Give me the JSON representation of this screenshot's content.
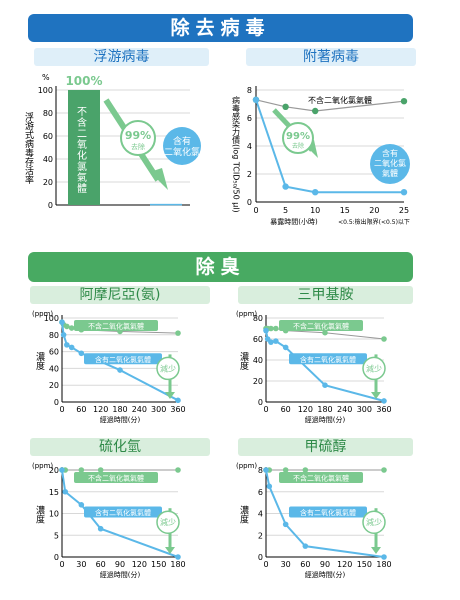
{
  "section1": {
    "title": "除去病毒"
  },
  "section2": {
    "title": "除臭"
  },
  "palette": {
    "blue": "#5bb8e8",
    "green": "#4aa36a",
    "gray": "#999999",
    "light_green": "#7bc98f",
    "header_blue": "#1f73c0"
  },
  "chart_data": [
    {
      "type": "bar",
      "subtitle": "浮游病毒",
      "ylabel": "浮游式病毒存活率",
      "unit": "%",
      "ylim": [
        0,
        100
      ],
      "yticks": [
        "0",
        "20",
        "40",
        "60",
        "80",
        "100"
      ],
      "categories": [
        "不含二氧化氯氣體",
        "含有二氧化氯"
      ],
      "values": [
        100,
        1
      ],
      "labels": {
        "top": "100%",
        "reduction": "99%",
        "reduction_sub": "去除",
        "bar1": "不含二氧化氯氣體",
        "bar2": "含有二氧化氯"
      }
    },
    {
      "type": "line",
      "subtitle": "附著病毒",
      "ylabel": "病毒感染力價(log TCID₅₀/50 μl)",
      "xlabel": "暴露時間(小時)",
      "note": "<0.5:檢出限界(<0.5)以下",
      "x": [
        0,
        5,
        10,
        25
      ],
      "xticks": [
        "0",
        "5",
        "10",
        "15",
        "20",
        "25"
      ],
      "yticks": [
        "0",
        "2",
        "4",
        "6",
        "8"
      ],
      "ylim": [
        0,
        8
      ],
      "xlim": [
        0,
        25
      ],
      "series": [
        {
          "name": "不含二氧化氯氣體",
          "values": [
            7.3,
            6.8,
            6.5,
            7.2
          ]
        },
        {
          "name": "含有二氧化氯氣體",
          "values": [
            7.3,
            1.1,
            0.7,
            0.7
          ]
        }
      ],
      "labels": {
        "reduction": "99%",
        "reduction_sub": "去除"
      }
    },
    {
      "type": "line",
      "subtitle": "阿摩尼亞(氨)",
      "ylabel": "濃度",
      "unit": "(ppm)",
      "xlabel": "經過時間(分)",
      "x": [
        0,
        5,
        15,
        30,
        60,
        180,
        360
      ],
      "xticks": [
        "0",
        "60",
        "120",
        "180",
        "240",
        "300",
        "360"
      ],
      "yticks": [
        "0",
        "20",
        "40",
        "60",
        "80",
        "100"
      ],
      "ylim": [
        0,
        100
      ],
      "xlim": [
        0,
        360
      ],
      "series": [
        {
          "name": "不含二氧化氯氣體",
          "values": [
            95,
            92,
            90,
            88,
            86,
            84,
            82
          ]
        },
        {
          "name": "含有二氧化氯氣體",
          "values": [
            95,
            80,
            68,
            65,
            58,
            38,
            2
          ]
        }
      ],
      "labels": {
        "reduction": "減少"
      }
    },
    {
      "type": "line",
      "subtitle": "三甲基胺",
      "ylabel": "濃度",
      "unit": "(ppm)",
      "xlabel": "經過時間(分)",
      "x": [
        0,
        5,
        15,
        30,
        60,
        180,
        360
      ],
      "xticks": [
        "0",
        "60",
        "120",
        "180",
        "240",
        "300",
        "360"
      ],
      "yticks": [
        "0",
        "20",
        "40",
        "60",
        "80"
      ],
      "ylim": [
        0,
        80
      ],
      "xlim": [
        0,
        360
      ],
      "series": [
        {
          "name": "不含二氧化氯氣體",
          "values": [
            70,
            70,
            70,
            70,
            68,
            66,
            60
          ]
        },
        {
          "name": "含有二氧化氯氣體",
          "values": [
            68,
            60,
            57,
            58,
            52,
            16,
            1
          ]
        }
      ],
      "labels": {
        "reduction": "減少"
      }
    },
    {
      "type": "line",
      "subtitle": "硫化氫",
      "ylabel": "濃度",
      "unit": "(ppm)",
      "xlabel": "經過時間(分)",
      "x": [
        0,
        5,
        30,
        60,
        180
      ],
      "xticks": [
        "0",
        "30",
        "60",
        "90",
        "120",
        "150",
        "180"
      ],
      "yticks": [
        "0",
        "5",
        "10",
        "15",
        "20"
      ],
      "ylim": [
        0,
        20
      ],
      "xlim": [
        0,
        180
      ],
      "series": [
        {
          "name": "不含二氧化氯氣體",
          "values": [
            20,
            20,
            20,
            20,
            20
          ]
        },
        {
          "name": "含有二氧化氯氣體",
          "values": [
            20,
            15,
            12,
            6.5,
            0
          ]
        }
      ],
      "labels": {
        "reduction": "減少"
      }
    },
    {
      "type": "line",
      "subtitle": "甲硫醇",
      "ylabel": "濃度",
      "unit": "(ppm)",
      "xlabel": "經過時間(分)",
      "x": [
        0,
        5,
        30,
        60,
        180
      ],
      "xticks": [
        "0",
        "30",
        "60",
        "90",
        "120",
        "150",
        "180"
      ],
      "yticks": [
        "0",
        "2",
        "4",
        "6",
        "8"
      ],
      "ylim": [
        0,
        8
      ],
      "xlim": [
        0,
        180
      ],
      "series": [
        {
          "name": "不含二氧化氯氣體",
          "values": [
            8,
            8,
            8,
            8,
            8
          ]
        },
        {
          "name": "含有二氧化氯氣體",
          "values": [
            8,
            6.5,
            3,
            1,
            0
          ]
        }
      ],
      "labels": {
        "reduction": "減少"
      }
    }
  ]
}
